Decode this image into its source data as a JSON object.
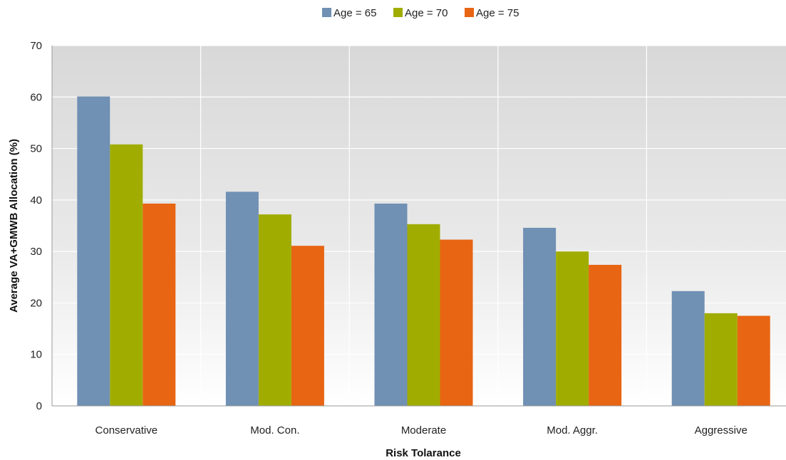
{
  "chart_data": {
    "type": "bar",
    "title": "",
    "xlabel": "Risk Tolarance",
    "ylabel": "Average VA+GMWB Allocation (%)",
    "categories": [
      "Conservative",
      "Mod. Con.",
      "Moderate",
      "Mod. Aggr.",
      "Aggressive"
    ],
    "series": [
      {
        "name": "Age = 65",
        "color": "#7090b4",
        "values": [
          60.1,
          41.6,
          39.3,
          34.6,
          22.3
        ]
      },
      {
        "name": "Age = 70",
        "color": "#a0ad00",
        "values": [
          50.8,
          37.2,
          35.3,
          30.0,
          18.0
        ]
      },
      {
        "name": "Age = 75",
        "color": "#e86513",
        "values": [
          39.3,
          31.1,
          32.3,
          27.4,
          17.5
        ]
      }
    ],
    "ylim": [
      0,
      70
    ],
    "yticks": [
      "0",
      "10",
      "20",
      "30",
      "40",
      "50",
      "60",
      "70"
    ],
    "grid": true,
    "legend_position": "top-center",
    "plot_background": "gradient-gray"
  }
}
